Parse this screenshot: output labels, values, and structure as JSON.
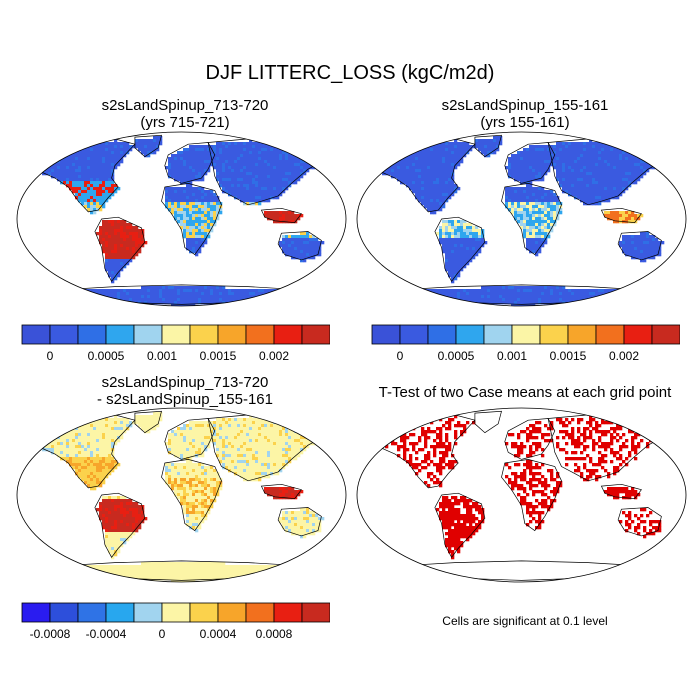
{
  "title": "DJF LITTERC_LOSS (kgC/m2d)",
  "colors": {
    "land_pos": [
      "#3a52d8",
      "#3a5ae0",
      "#2f6fe6",
      "#2fa6ee",
      "#a0d4ef",
      "#fbf5a6",
      "#fbd24c",
      "#f7a52a",
      "#f2701e",
      "#e81f12",
      "#c82a1f"
    ],
    "diff_pos": [
      "#2a1cf0",
      "#2d4fdb",
      "#2f73e6",
      "#28a7ee",
      "#a1d4ef",
      "#fcf5a6",
      "#fbd24c",
      "#f7a52a",
      "#f2701e",
      "#e81f12",
      "#c82a1f"
    ],
    "ttest": "#e00000"
  },
  "chart_data": [
    {
      "type": "heatmap",
      "panel": "top-left",
      "title_line1": "s2sLandSpinup_713-720",
      "title_line2": "(yrs 715-721)",
      "colorbar": {
        "tick_labels": [
          "0",
          "0.0005",
          "0.001",
          "0.0015",
          "0.002"
        ],
        "tick_values": [
          0,
          0.0005,
          0.001,
          0.0015,
          0.002
        ],
        "levels": [
          -0.00025,
          0,
          0.00025,
          0.0005,
          0.00075,
          0.001,
          0.00125,
          0.0015,
          0.00175,
          0.002,
          0.00225
        ]
      }
    },
    {
      "type": "heatmap",
      "panel": "top-right",
      "title_line1": "s2sLandSpinup_155-161",
      "title_line2": "(yrs 155-161)",
      "colorbar": {
        "tick_labels": [
          "0",
          "0.0005",
          "0.001",
          "0.0015",
          "0.002"
        ],
        "tick_values": [
          0,
          0.0005,
          0.001,
          0.0015,
          0.002
        ],
        "levels": [
          -0.00025,
          0,
          0.00025,
          0.0005,
          0.00075,
          0.001,
          0.00125,
          0.0015,
          0.00175,
          0.002,
          0.00225
        ]
      }
    },
    {
      "type": "heatmap",
      "panel": "bottom-left",
      "title_line1": "s2sLandSpinup_713-720",
      "title_line2": "- s2sLandSpinup_155-161",
      "colorbar": {
        "tick_labels": [
          "-0.0008",
          "-0.0004",
          "0",
          "0.0004",
          "0.0008"
        ],
        "tick_values": [
          -0.0008,
          -0.0004,
          0,
          0.0004,
          0.0008
        ]
      }
    },
    {
      "type": "heatmap",
      "panel": "bottom-right",
      "title_line1": "T-Test of two Case means at each grid point",
      "note": "Cells are significant at 0.1 level"
    }
  ]
}
